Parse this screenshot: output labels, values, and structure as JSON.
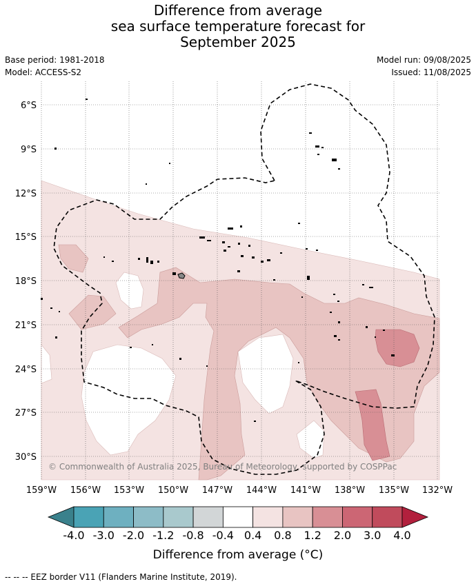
{
  "title": {
    "line1": "Difference from average",
    "line2": "sea surface temperature forecast for",
    "line3": "September 2025"
  },
  "meta": {
    "base_period": "Base period: 1981-2018",
    "model": "Model: ACCESS-S2",
    "model_run": "Model run: 09/08/2025",
    "issued": "Issued: 11/08/2025"
  },
  "map": {
    "lat_labels": [
      "6°S",
      "9°S",
      "12°S",
      "15°S",
      "18°S",
      "21°S",
      "24°S",
      "27°S",
      "30°S"
    ],
    "lon_labels": [
      "159°W",
      "156°W",
      "153°W",
      "150°W",
      "147°W",
      "144°W",
      "141°W",
      "138°W",
      "135°W",
      "132°W"
    ],
    "copyright": "© Commonwealth of Australia 2025, Bureau of Meteorology, supported by COSPPac"
  },
  "colorbar": {
    "ticks": [
      "-4.0",
      "-3.0",
      "-2.0",
      "-1.2",
      "-0.8",
      "-0.4",
      "0.4",
      "0.8",
      "1.2",
      "2.0",
      "3.0",
      "4.0"
    ],
    "colors": [
      "#4aa3b5",
      "#6eb0c0",
      "#8dbcc7",
      "#a9c9cd",
      "#d2d6d7",
      "#ffffff",
      "#f4e3e2",
      "#e8c4c2",
      "#d88f95",
      "#cc6674",
      "#c04b5c"
    ],
    "under_color": "#3a818c",
    "over_color": "#b2203d",
    "label": "Difference from average (°C)"
  },
  "footer": {
    "legend": "--  --  -- EEZ border V11 (Flanders Marine Institute, 2019)."
  }
}
